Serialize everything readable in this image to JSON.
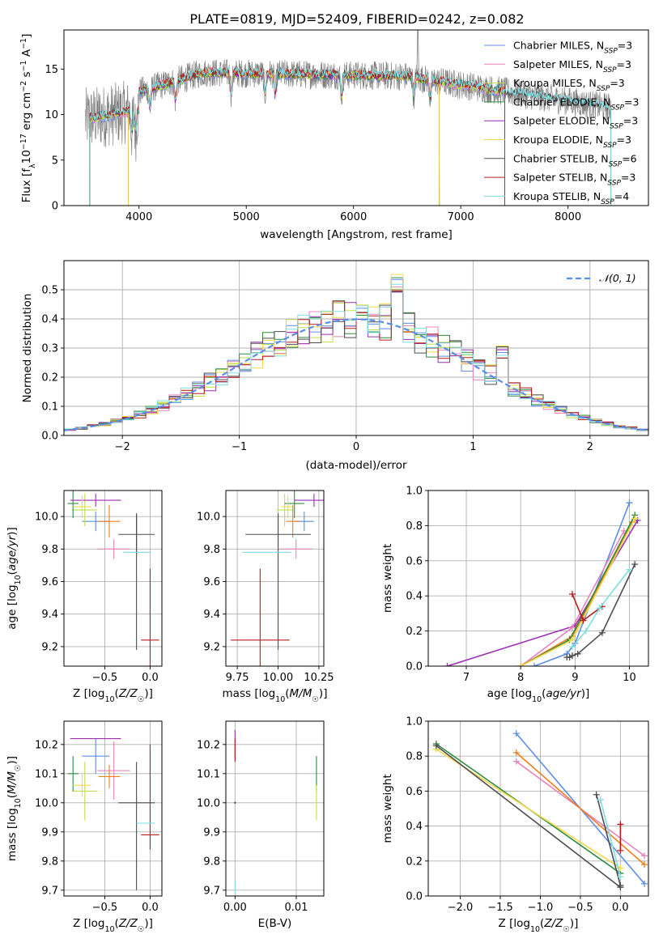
{
  "title": "PLATE=0819, MJD=52409, FIBERID=0242, z=0.082",
  "colors": {
    "chabrier_miles": "#5b8ee6",
    "salpeter_miles": "#e884bd",
    "kroupa_miles": "#bfe04a",
    "chabrier_elodie": "#2e8b3e",
    "salpeter_elodie": "#9a2fb3",
    "kroupa_elodie": "#f2d94a",
    "chabrier_stelib": "#4d4d4d",
    "salpeter_stelib": "#b81d1d",
    "kroupa_stelib": "#7fdde0",
    "orange": "#f07f1e",
    "spectrum": "#808080"
  },
  "chart_data": [
    {
      "type": "line",
      "name": "spectrum",
      "xlabel": "wavelength [Angstrom, rest frame]",
      "ylabel": "Flux [f_λ10^-17 erg cm^-2 s^-1 A^-1]",
      "xlim": [
        3300,
        8750
      ],
      "ylim": [
        0,
        19.3
      ],
      "xticks": [
        4000,
        5000,
        6000,
        7000,
        8000
      ],
      "yticks": [
        0,
        5,
        10,
        15
      ],
      "grid": false,
      "legend_position": "top-right",
      "data_range": [
        3500,
        8400
      ],
      "series": [
        {
          "name": "Chabrier MILES, N_SSP=3",
          "color_key": "chabrier_miles",
          "cutoff": [
            3540,
            7410
          ]
        },
        {
          "name": "Salpeter MILES, N_SSP=3",
          "color_key": "salpeter_miles",
          "cutoff": [
            3540,
            7410
          ]
        },
        {
          "name": "Kroupa MILES, N_SSP=3",
          "color_key": "kroupa_miles",
          "cutoff": [
            3540,
            7410
          ]
        },
        {
          "name": "Chabrier ELODIE, N_SSP=3",
          "color_key": "chabrier_elodie",
          "cutoff": [
            3900,
            6800
          ]
        },
        {
          "name": "Salpeter ELODIE, N_SSP=3",
          "color_key": "salpeter_elodie",
          "cutoff": [
            3900,
            6800
          ]
        },
        {
          "name": "Kroupa ELODIE, N_SSP=3",
          "color_key": "kroupa_elodie",
          "cutoff": [
            3900,
            6800
          ]
        },
        {
          "name": "Chabrier STELIB, N_SSP=6",
          "color_key": "chabrier_stelib",
          "cutoff": [
            3540,
            8400
          ]
        },
        {
          "name": "Salpeter STELIB, N_SSP=3",
          "color_key": "salpeter_stelib",
          "cutoff": [
            3540,
            7410
          ]
        },
        {
          "name": "Kroupa STELIB, N_SSP=4",
          "color_key": "kroupa_stelib",
          "cutoff": [
            3540,
            8400
          ]
        }
      ]
    },
    {
      "type": "histogram",
      "name": "residuals",
      "xlabel": "(data-model)/error",
      "ylabel": "Normed distribution",
      "xlim": [
        -2.5,
        2.5
      ],
      "ylim": [
        0,
        0.6
      ],
      "xticks": [
        -2,
        -1,
        0,
        1,
        2
      ],
      "yticks": [
        0.0,
        0.1,
        0.2,
        0.3,
        0.4,
        0.5
      ],
      "grid": true,
      "legend_position": "top-right",
      "legend_label": "𝒩(0, 1)",
      "reference_curve": {
        "type": "normal",
        "mean": 0,
        "sigma": 1,
        "style": "dashed"
      },
      "bin_width": 0.1,
      "highlight_bins": [
        {
          "x": [
            0.3,
            0.4
          ],
          "y": 0.555
        },
        {
          "x": [
            0.1,
            0.2
          ],
          "y": 0.48
        },
        {
          "x": [
            0.0,
            0.1
          ],
          "y": 0.45
        },
        {
          "x": [
            0.7,
            0.8
          ],
          "y": 0.39
        },
        {
          "x": [
            1.2,
            1.3
          ],
          "y": 0.31
        }
      ]
    },
    {
      "type": "errorbar",
      "name": "age_vs_Z",
      "xlabel": "Z [log10(Z/Z☉)]",
      "ylabel": "age  [log10(age/yr)]",
      "xlim": [
        -0.95,
        0.13
      ],
      "ylim": [
        9.08,
        10.16
      ],
      "xticks": [
        -0.5,
        0.0
      ],
      "yticks": [
        9.2,
        9.4,
        9.6,
        9.8,
        10.0
      ],
      "grid": true,
      "points": [
        {
          "color_key": "chabrier_miles",
          "x": -0.6,
          "xerr": 0.15,
          "y": 9.97,
          "yerr": 0.06
        },
        {
          "color_key": "salpeter_miles",
          "x": -0.4,
          "xerr": 0.18,
          "y": 9.8,
          "yerr": 0.06
        },
        {
          "color_key": "kroupa_miles",
          "x": -0.72,
          "xerr": 0.14,
          "y": 10.04,
          "yerr": 0.1
        },
        {
          "color_key": "chabrier_elodie",
          "x": -0.85,
          "xerr": 0.06,
          "y": 10.08,
          "yerr": 0.09
        },
        {
          "color_key": "salpeter_elodie",
          "x": -0.6,
          "xerr": 0.28,
          "y": 10.1,
          "yerr": 0.04
        },
        {
          "color_key": "kroupa_elodie",
          "x": -0.75,
          "xerr": 0.1,
          "y": 10.06,
          "yerr": 0.07
        },
        {
          "color_key": "orange",
          "x": -0.45,
          "xerr": 0.12,
          "y": 9.97,
          "yerr": 0.1
        },
        {
          "color_key": "chabrier_stelib",
          "x": -0.15,
          "xerr": 0.2,
          "y": 9.89,
          "yerr": 0.12
        },
        {
          "color_key": "chabrier_stelib",
          "x": -0.15,
          "xerr": 0.0,
          "y": 9.6,
          "yerr": 0.42
        },
        {
          "color_key": "salpeter_stelib",
          "x": 0.0,
          "xerr": 0.1,
          "y": 9.24,
          "yerr": 0.44
        },
        {
          "color_key": "kroupa_stelib",
          "x": -0.15,
          "xerr": 0.15,
          "y": 9.78,
          "yerr": 0.0
        }
      ]
    },
    {
      "type": "errorbar",
      "name": "age_vs_mass",
      "xlabel": "mass [log10(M/M☉)]",
      "ylabel": "",
      "xlim": [
        9.68,
        10.28
      ],
      "ylim": [
        9.08,
        10.16
      ],
      "xticks": [
        9.75,
        10.0,
        10.25
      ],
      "yticks": [
        9.2,
        9.4,
        9.6,
        9.8,
        10.0
      ],
      "grid": true,
      "points": [
        {
          "color_key": "chabrier_miles",
          "x": 10.16,
          "xerr": 0.06,
          "y": 9.97,
          "yerr": 0.06
        },
        {
          "color_key": "salpeter_miles",
          "x": 10.11,
          "xerr": 0.1,
          "y": 9.8,
          "yerr": 0.06
        },
        {
          "color_key": "kroupa_miles",
          "x": 10.04,
          "xerr": 0.05,
          "y": 10.04,
          "yerr": 0.1
        },
        {
          "color_key": "chabrier_elodie",
          "x": 10.1,
          "xerr": 0.06,
          "y": 10.08,
          "yerr": 0.09
        },
        {
          "color_key": "salpeter_elodie",
          "x": 10.22,
          "xerr": 0.12,
          "y": 10.1,
          "yerr": 0.04
        },
        {
          "color_key": "kroupa_elodie",
          "x": 10.06,
          "xerr": 0.04,
          "y": 10.06,
          "yerr": 0.07
        },
        {
          "color_key": "orange",
          "x": 10.09,
          "xerr": 0.04,
          "y": 9.97,
          "yerr": 0.1
        },
        {
          "color_key": "chabrier_stelib",
          "x": 10.0,
          "xerr": 0.2,
          "y": 9.89,
          "yerr": 0.12
        },
        {
          "color_key": "chabrier_stelib",
          "x": 10.0,
          "xerr": 0.0,
          "y": 9.6,
          "yerr": 0.42
        },
        {
          "color_key": "salpeter_stelib",
          "x": 9.89,
          "xerr": 0.18,
          "y": 9.24,
          "yerr": 0.44
        },
        {
          "color_key": "kroupa_stelib",
          "x": 9.93,
          "xerr": 0.15,
          "y": 9.78,
          "yerr": 0.0
        }
      ]
    },
    {
      "type": "line",
      "name": "mass_weight_vs_age",
      "xlabel": "age  [log10(age/yr)]",
      "ylabel": "mass weight",
      "xlim": [
        6.3,
        10.35
      ],
      "ylim": [
        0,
        1.0
      ],
      "xticks": [
        7,
        8,
        9,
        10
      ],
      "yticks": [
        0.0,
        0.2,
        0.4,
        0.6,
        0.8,
        1.0
      ],
      "grid": true,
      "series": [
        {
          "color_key": "salpeter_elodie",
          "x": [
            6.65,
            9.0,
            10.15
          ],
          "y": [
            0.0,
            0.23,
            0.83
          ]
        },
        {
          "color_key": "chabrier_miles",
          "x": [
            8.25,
            8.85,
            9.0,
            10.0
          ],
          "y": [
            0.0,
            0.07,
            0.13,
            0.93
          ]
        },
        {
          "color_key": "salpeter_miles",
          "x": [
            8.0,
            8.95,
            9.9
          ],
          "y": [
            0.0,
            0.22,
            0.77
          ]
        },
        {
          "color_key": "orange",
          "x": [
            8.0,
            8.95,
            10.05
          ],
          "y": [
            0.0,
            0.17,
            0.82
          ]
        },
        {
          "color_key": "chabrier_elodie",
          "x": [
            8.0,
            8.9,
            10.1
          ],
          "y": [
            0.0,
            0.15,
            0.86
          ]
        },
        {
          "color_key": "kroupa_elodie",
          "x": [
            8.0,
            8.95,
            10.1
          ],
          "y": [
            0.0,
            0.15,
            0.84
          ]
        },
        {
          "color_key": "chabrier_stelib",
          "x": [
            8.85,
            8.9,
            8.95,
            9.05,
            9.5,
            10.1
          ],
          "y": [
            0.05,
            0.05,
            0.06,
            0.07,
            0.19,
            0.58
          ]
        },
        {
          "color_key": "salpeter_stelib",
          "x": [
            8.95,
            9.15,
            9.5
          ],
          "y": [
            0.41,
            0.26,
            0.34
          ]
        },
        {
          "color_key": "kroupa_stelib",
          "x": [
            8.95,
            9.2,
            9.45,
            10.0
          ],
          "y": [
            0.11,
            0.2,
            0.33,
            0.55
          ]
        }
      ]
    },
    {
      "type": "errorbar",
      "name": "mass_vs_Z",
      "xlabel": "Z [log10(Z/Z☉)]",
      "ylabel": "mass [log10(M/M☉)]",
      "xlim": [
        -0.95,
        0.13
      ],
      "ylim": [
        9.68,
        10.28
      ],
      "xticks": [
        -0.5,
        0.0
      ],
      "yticks": [
        9.7,
        9.8,
        9.9,
        10.0,
        10.1,
        10.2
      ],
      "grid": true,
      "points": [
        {
          "color_key": "chabrier_miles",
          "x": -0.6,
          "xerr": 0.15,
          "y": 10.16,
          "yerr": 0.06
        },
        {
          "color_key": "salpeter_miles",
          "x": -0.4,
          "xerr": 0.18,
          "y": 10.11,
          "yerr": 0.1
        },
        {
          "color_key": "kroupa_miles",
          "x": -0.72,
          "xerr": 0.14,
          "y": 10.04,
          "yerr": 0.1
        },
        {
          "color_key": "chabrier_elodie",
          "x": -0.85,
          "xerr": 0.06,
          "y": 10.1,
          "yerr": 0.06
        },
        {
          "color_key": "salpeter_elodie",
          "x": -0.6,
          "xerr": 0.28,
          "y": 10.22,
          "yerr": 0.0
        },
        {
          "color_key": "kroupa_elodie",
          "x": -0.75,
          "xerr": 0.1,
          "y": 10.06,
          "yerr": 0.04
        },
        {
          "color_key": "orange",
          "x": -0.45,
          "xerr": 0.12,
          "y": 10.09,
          "yerr": 0.04
        },
        {
          "color_key": "chabrier_stelib",
          "x": -0.15,
          "xerr": 0.2,
          "y": 10.0,
          "yerr": 0.0
        },
        {
          "color_key": "chabrier_stelib",
          "x": -0.15,
          "xerr": 0.0,
          "y": 9.92,
          "yerr": 0.22
        },
        {
          "color_key": "salpeter_stelib",
          "x": 0.0,
          "xerr": 0.1,
          "y": 9.89,
          "yerr": 0.0
        },
        {
          "color_key": "salpeter_stelib",
          "x": 0.0,
          "xerr": 0.0,
          "y": 10.02,
          "yerr": 0.18
        },
        {
          "color_key": "kroupa_stelib",
          "x": -0.05,
          "xerr": 0.1,
          "y": 9.93,
          "yerr": 0.0
        }
      ]
    },
    {
      "type": "errorbar",
      "name": "mass_vs_EBV",
      "xlabel": "E(B-V)",
      "ylabel": "",
      "xlim": [
        -0.0015,
        0.0145
      ],
      "ylim": [
        9.68,
        10.28
      ],
      "xticks": [
        0.0,
        0.01
      ],
      "xtick_labels": [
        "0.00",
        "0.01"
      ],
      "yticks": [
        9.7,
        9.8,
        9.9,
        10.0,
        10.1,
        10.2
      ],
      "grid": true,
      "points": [
        {
          "color_key": "salpeter_elodie",
          "x": 0.0,
          "y": 10.2,
          "yerr": 0.05
        },
        {
          "color_key": "salpeter_stelib",
          "x": 0.0,
          "y": 10.18,
          "yerr": 0.04
        },
        {
          "color_key": "kroupa_stelib",
          "x": 0.0,
          "y": 9.71,
          "yerr": 0.02
        },
        {
          "color_key": "chabrier_stelib",
          "x": 0.0,
          "y": 10.0,
          "yerr": 0.0
        },
        {
          "color_key": "chabrier_elodie",
          "x": 0.0133,
          "y": 10.1,
          "yerr": 0.06
        },
        {
          "color_key": "kroupa_miles",
          "x": 0.0133,
          "y": 10.0,
          "yerr": 0.06
        }
      ]
    },
    {
      "type": "line",
      "name": "mass_weight_vs_Z",
      "xlabel": "Z [log10(Z/Z☉)]",
      "ylabel": "mass weight",
      "xlim": [
        -2.4,
        0.35
      ],
      "ylim": [
        0,
        1.0
      ],
      "xticks": [
        -2.0,
        -1.5,
        -1.0,
        -0.5,
        0.0
      ],
      "yticks": [
        0.0,
        0.2,
        0.4,
        0.6,
        0.8,
        1.0
      ],
      "grid": true,
      "series": [
        {
          "color_key": "chabrier_miles",
          "x": [
            -1.3,
            0.3
          ],
          "y": [
            0.93,
            0.07
          ]
        },
        {
          "color_key": "salpeter_miles",
          "x": [
            -1.3,
            0.3
          ],
          "y": [
            0.77,
            0.23
          ]
        },
        {
          "color_key": "orange",
          "x": [
            -1.3,
            0.3
          ],
          "y": [
            0.82,
            0.18
          ]
        },
        {
          "color_key": "chabrier_elodie",
          "x": [
            -2.3,
            0.0
          ],
          "y": [
            0.87,
            0.13
          ]
        },
        {
          "color_key": "kroupa_elodie",
          "x": [
            -2.3,
            0.0
          ],
          "y": [
            0.84,
            0.16
          ]
        },
        {
          "color_key": "chabrier_stelib",
          "x": [
            -2.3,
            0.0
          ],
          "y": [
            0.86,
            0.05
          ]
        },
        {
          "color_key": "chabrier_stelib",
          "x": [
            -0.3,
            0.0
          ],
          "y": [
            0.58,
            0.06
          ]
        },
        {
          "color_key": "kroupa_stelib",
          "x": [
            -0.25,
            0.0
          ],
          "y": [
            0.55,
            0.11
          ]
        },
        {
          "color_key": "salpeter_stelib",
          "x": [
            0.0,
            0.0
          ],
          "y": [
            0.41,
            0.26
          ]
        }
      ]
    }
  ]
}
